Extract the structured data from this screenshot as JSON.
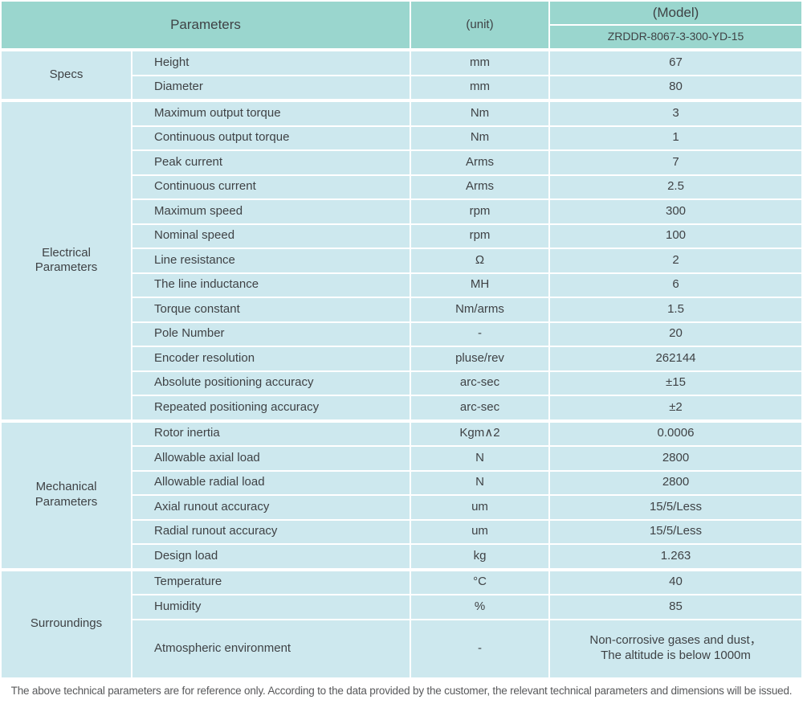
{
  "colors": {
    "header_bg": "#9ad6ce",
    "cell_bg": "#cde8ee",
    "text": "#3f4245",
    "footer_text": "#58595b",
    "divider": "#ffffff"
  },
  "header": {
    "parameters_label": "Parameters",
    "unit_label": "(unit)",
    "model_label": "(Model)",
    "model_value": "ZRDDR-8067-3-300-YD-15"
  },
  "sections": [
    {
      "id": "specs",
      "category": "Specs",
      "rows": [
        {
          "parameter": "Height",
          "unit": "mm",
          "value": "67"
        },
        {
          "parameter": "Diameter",
          "unit": "mm",
          "value": "80"
        }
      ]
    },
    {
      "id": "electrical-parameters",
      "category": "Electrical\nParameters",
      "rows": [
        {
          "parameter": "Maximum output torque",
          "unit": "Nm",
          "value": "3"
        },
        {
          "parameter": "Continuous output torque",
          "unit": "Nm",
          "value": "1"
        },
        {
          "parameter": "Peak current",
          "unit": "Arms",
          "value": "7"
        },
        {
          "parameter": "Continuous current",
          "unit": "Arms",
          "value": "2.5"
        },
        {
          "parameter": "Maximum speed",
          "unit": "rpm",
          "value": "300"
        },
        {
          "parameter": "Nominal speed",
          "unit": "rpm",
          "value": "100"
        },
        {
          "parameter": "Line resistance",
          "unit": "Ω",
          "value": "2"
        },
        {
          "parameter": "The line inductance",
          "unit": "MH",
          "value": "6"
        },
        {
          "parameter": "Torque constant",
          "unit": "Nm/arms",
          "value": "1.5"
        },
        {
          "parameter": "Pole Number",
          "unit": "-",
          "value": "20"
        },
        {
          "parameter": "Encoder resolution",
          "unit": "pluse/rev",
          "value": "262144"
        },
        {
          "parameter": "Absolute positioning accuracy",
          "unit": "arc-sec",
          "value": "±15"
        },
        {
          "parameter": "Repeated positioning accuracy",
          "unit": "arc-sec",
          "value": "±2"
        }
      ]
    },
    {
      "id": "mechanical-parameters",
      "category": "Mechanical\nParameters",
      "rows": [
        {
          "parameter": "Rotor inertia",
          "unit": "Kgm∧2",
          "value": "0.0006"
        },
        {
          "parameter": "Allowable axial load",
          "unit": "N",
          "value": "2800"
        },
        {
          "parameter": "Allowable radial load",
          "unit": "N",
          "value": "2800"
        },
        {
          "parameter": "Axial runout accuracy",
          "unit": "um",
          "value": "15/5/Less"
        },
        {
          "parameter": "Radial runout accuracy",
          "unit": "um",
          "value": "15/5/Less"
        },
        {
          "parameter": "Design load",
          "unit": "kg",
          "value": "1.263"
        }
      ]
    },
    {
      "id": "surroundings",
      "category": "Surroundings",
      "rows": [
        {
          "parameter": "Temperature",
          "unit": "°C",
          "value": "40"
        },
        {
          "parameter": "Humidity",
          "unit": "%",
          "value": "85"
        },
        {
          "parameter": "Atmospheric environment",
          "unit": "-",
          "value": "Non-corrosive gases and dust，\nThe altitude is below 1000m",
          "tall": true
        }
      ]
    }
  ],
  "footer": {
    "note": "The above technical parameters are for reference only. According to the data provided by the customer, the relevant technical parameters and dimensions will be issued."
  }
}
